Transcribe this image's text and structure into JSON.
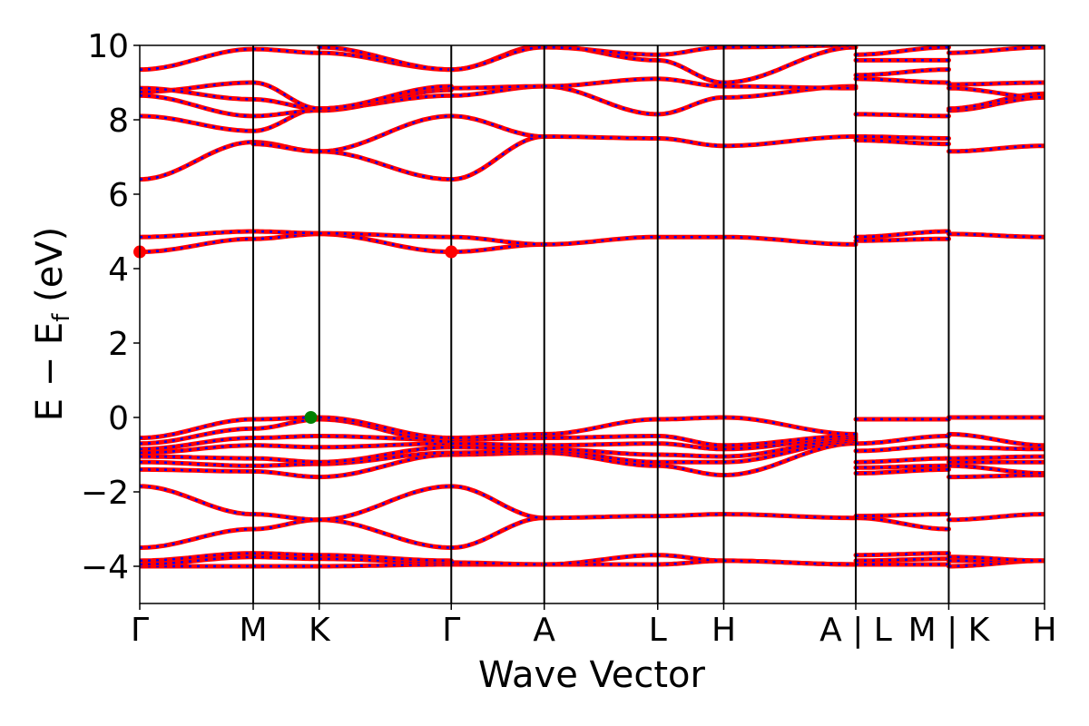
{
  "chart_data": {
    "type": "line",
    "xlabel": "Wave Vector",
    "ylabel": "E − E_f (eV)",
    "ylabel_main": "E − E",
    "ylabel_sub": "f",
    "ylabel_tail": " (eV)",
    "ylim": [
      -5,
      10
    ],
    "yticks": [
      -4,
      -2,
      0,
      2,
      4,
      6,
      8,
      10
    ],
    "ytick_labels": [
      "−4",
      "−2",
      "0",
      "2",
      "4",
      "6",
      "8",
      "10"
    ],
    "grid": false,
    "xlim": [
      0,
      9.73
    ],
    "kpoints": [
      {
        "label": "Γ",
        "x": 0.0
      },
      {
        "label": "M",
        "x": 1.22
      },
      {
        "label": "K",
        "x": 1.93
      },
      {
        "label": "Γ",
        "x": 3.35
      },
      {
        "label": "A",
        "x": 4.35
      },
      {
        "label": "L",
        "x": 5.57
      },
      {
        "label": "H",
        "x": 6.28
      },
      {
        "label": "A | L",
        "x": 7.7
      },
      {
        "label": "M | K",
        "x": 8.7
      },
      {
        "label": "H",
        "x": 9.73
      }
    ],
    "segments": [
      {
        "from": 0.0,
        "to": 1.22,
        "bands": [
          [
            -4.0,
            -4.0
          ],
          [
            -3.95,
            -3.75
          ],
          [
            -3.85,
            -3.65
          ],
          [
            -3.5,
            -3.0
          ],
          [
            -1.85,
            -2.6
          ],
          [
            -1.4,
            -1.45
          ],
          [
            -1.2,
            -1.3
          ],
          [
            -1.05,
            -1.1
          ],
          [
            -0.95,
            -0.75
          ],
          [
            -0.85,
            -0.55
          ],
          [
            -0.7,
            -0.3
          ],
          [
            -0.55,
            -0.05
          ],
          [
            4.45,
            4.8
          ],
          [
            4.85,
            5.0
          ],
          [
            6.4,
            7.4
          ],
          [
            8.1,
            7.7
          ],
          [
            8.65,
            8.1
          ],
          [
            8.75,
            9.0
          ],
          [
            8.85,
            8.55
          ],
          [
            9.35,
            9.9
          ]
        ]
      },
      {
        "from": 1.22,
        "to": 1.93,
        "bands": [
          [
            -4.0,
            -4.0
          ],
          [
            -3.75,
            -3.8
          ],
          [
            -3.65,
            -3.7
          ],
          [
            -3.0,
            -2.75
          ],
          [
            -2.6,
            -2.75
          ],
          [
            -1.45,
            -1.6
          ],
          [
            -1.3,
            -1.25
          ],
          [
            -1.1,
            -1.2
          ],
          [
            -0.75,
            -0.8
          ],
          [
            -0.55,
            -0.5
          ],
          [
            -0.3,
            -0.05
          ],
          [
            -0.05,
            0.0
          ],
          [
            4.8,
            4.93
          ],
          [
            5.0,
            4.95
          ],
          [
            7.4,
            7.15
          ],
          [
            7.35,
            7.15
          ],
          [
            7.7,
            8.3
          ],
          [
            8.1,
            8.25
          ],
          [
            8.55,
            8.3
          ],
          [
            9.0,
            8.3
          ],
          [
            9.9,
            9.8
          ]
        ]
      },
      {
        "from": 1.93,
        "to": 3.35,
        "bands": [
          [
            -4.0,
            -3.95
          ],
          [
            -3.8,
            -3.9
          ],
          [
            -3.7,
            -3.85
          ],
          [
            -2.75,
            -3.5
          ],
          [
            -2.75,
            -1.85
          ],
          [
            -1.6,
            -1.0
          ],
          [
            -1.25,
            -0.95
          ],
          [
            -1.2,
            -0.8
          ],
          [
            -0.8,
            -0.7
          ],
          [
            -0.5,
            -0.6
          ],
          [
            -0.05,
            -0.65
          ],
          [
            0.0,
            -0.55
          ],
          [
            4.93,
            4.45
          ],
          [
            4.95,
            4.85
          ],
          [
            7.15,
            6.4
          ],
          [
            7.15,
            8.1
          ],
          [
            8.3,
            8.65
          ],
          [
            8.25,
            8.8
          ],
          [
            8.3,
            8.85
          ],
          [
            8.3,
            8.9
          ],
          [
            9.8,
            9.35
          ],
          [
            9.95,
            9.35
          ]
        ]
      },
      {
        "from": 3.35,
        "to": 4.35,
        "bands": [
          [
            -3.95,
            -3.95
          ],
          [
            -3.9,
            -3.95
          ],
          [
            -3.5,
            -2.7
          ],
          [
            -1.85,
            -2.7
          ],
          [
            -1.0,
            -0.95
          ],
          [
            -0.95,
            -0.9
          ],
          [
            -0.8,
            -0.85
          ],
          [
            -0.7,
            -0.75
          ],
          [
            -0.6,
            -0.55
          ],
          [
            -0.55,
            -0.45
          ],
          [
            4.45,
            4.65
          ],
          [
            4.85,
            4.65
          ],
          [
            6.4,
            7.55
          ],
          [
            8.1,
            7.55
          ],
          [
            8.65,
            8.9
          ],
          [
            8.85,
            8.9
          ],
          [
            9.35,
            10.0
          ],
          [
            9.35,
            9.95
          ]
        ]
      },
      {
        "from": 4.35,
        "to": 5.57,
        "bands": [
          [
            -3.95,
            -3.95
          ],
          [
            -3.95,
            -3.7
          ],
          [
            -2.7,
            -2.65
          ],
          [
            -0.95,
            -1.3
          ],
          [
            -0.9,
            -1.2
          ],
          [
            -0.85,
            -1.0
          ],
          [
            -0.75,
            -0.7
          ],
          [
            -0.55,
            -0.5
          ],
          [
            -0.45,
            -0.05
          ],
          [
            4.65,
            4.85
          ],
          [
            7.55,
            7.5
          ],
          [
            8.9,
            8.15
          ],
          [
            8.9,
            9.1
          ],
          [
            10.0,
            9.6
          ],
          [
            9.95,
            9.75
          ]
        ]
      },
      {
        "from": 5.57,
        "to": 6.28,
        "bands": [
          [
            -3.95,
            -3.85
          ],
          [
            -3.7,
            -3.85
          ],
          [
            -2.65,
            -2.6
          ],
          [
            -1.3,
            -1.55
          ],
          [
            -1.2,
            -1.2
          ],
          [
            -1.0,
            -1.05
          ],
          [
            -0.7,
            -0.85
          ],
          [
            -0.5,
            -0.75
          ],
          [
            -0.05,
            0.0
          ],
          [
            4.85,
            4.85
          ],
          [
            7.5,
            7.3
          ],
          [
            8.15,
            8.6
          ],
          [
            9.1,
            8.9
          ],
          [
            9.6,
            9.0
          ],
          [
            9.75,
            9.95
          ]
        ]
      },
      {
        "from": 6.28,
        "to": 7.7,
        "bands": [
          [
            -3.85,
            -3.95
          ],
          [
            -3.85,
            -3.95
          ],
          [
            -2.6,
            -2.7
          ],
          [
            -1.55,
            -0.7
          ],
          [
            -1.2,
            -0.65
          ],
          [
            -1.05,
            -0.6
          ],
          [
            -0.85,
            -0.55
          ],
          [
            -0.75,
            -0.5
          ],
          [
            0.0,
            -0.45
          ],
          [
            4.85,
            4.65
          ],
          [
            7.3,
            7.55
          ],
          [
            8.6,
            8.9
          ],
          [
            8.9,
            8.85
          ],
          [
            9.0,
            9.95
          ],
          [
            9.95,
            10.0
          ]
        ]
      },
      {
        "from": 7.7,
        "to": 8.7,
        "bands": [
          [
            -3.95,
            -3.95
          ],
          [
            -3.7,
            -3.65
          ],
          [
            -3.85,
            -3.8
          ],
          [
            -2.7,
            -3.0
          ],
          [
            -2.65,
            -2.6
          ],
          [
            -1.5,
            -1.4
          ],
          [
            -1.35,
            -1.3
          ],
          [
            -1.2,
            -1.1
          ],
          [
            -0.9,
            -0.75
          ],
          [
            -0.7,
            -0.5
          ],
          [
            -0.05,
            -0.05
          ],
          [
            4.75,
            4.8
          ],
          [
            4.85,
            5.0
          ],
          [
            7.45,
            7.35
          ],
          [
            7.55,
            7.5
          ],
          [
            8.15,
            8.1
          ],
          [
            9.1,
            9.0
          ],
          [
            9.2,
            9.35
          ],
          [
            9.6,
            9.6
          ],
          [
            9.75,
            9.95
          ]
        ]
      },
      {
        "from": 8.7,
        "to": 9.73,
        "bands": [
          [
            -4.0,
            -3.85
          ],
          [
            -3.85,
            -3.85
          ],
          [
            -3.75,
            -3.85
          ],
          [
            -2.75,
            -2.6
          ],
          [
            -1.6,
            -1.55
          ],
          [
            -1.3,
            -1.5
          ],
          [
            -1.2,
            -1.2
          ],
          [
            -1.1,
            -1.05
          ],
          [
            -0.8,
            -0.85
          ],
          [
            -0.45,
            -0.75
          ],
          [
            0.0,
            0.0
          ],
          [
            4.93,
            4.85
          ],
          [
            7.15,
            7.3
          ],
          [
            8.25,
            8.6
          ],
          [
            8.3,
            8.7
          ],
          [
            8.85,
            8.6
          ],
          [
            8.95,
            9.0
          ],
          [
            9.8,
            9.95
          ]
        ]
      }
    ],
    "markers": [
      {
        "name": "cbm",
        "x": 0.0,
        "y": 4.45,
        "color": "#ff0000"
      },
      {
        "name": "cbm",
        "x": 3.35,
        "y": 4.45,
        "color": "#ff0000"
      },
      {
        "name": "vbm",
        "x": 1.84,
        "y": 0.0,
        "color": "#008000"
      }
    ],
    "colors": {
      "band_primary": "#ff0000",
      "band_dash": "#0000ff",
      "kline": "#000000"
    }
  }
}
